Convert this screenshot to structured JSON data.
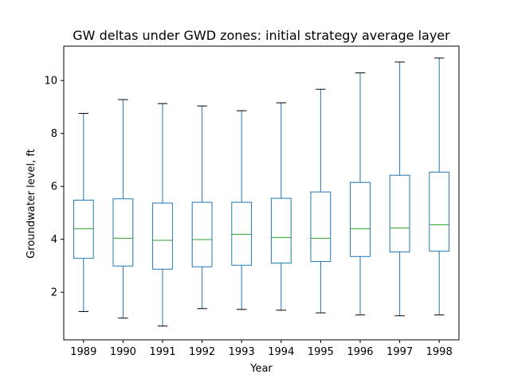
{
  "chart_data": {
    "type": "box",
    "title": "GW deltas under GWD zones: initial strategy average layer",
    "xlabel": "Year",
    "ylabel": "Groundwater level, ft",
    "categories": [
      "1989",
      "1990",
      "1991",
      "1992",
      "1993",
      "1994",
      "1995",
      "1996",
      "1997",
      "1998"
    ],
    "ylim": [
      0.2,
      11.3
    ],
    "yticks": [
      2,
      4,
      6,
      8,
      10
    ],
    "grid": false,
    "legend": "none",
    "boxes": [
      {
        "category": "1989",
        "whisker_low": 1.27,
        "q1": 3.28,
        "median": 4.4,
        "q3": 5.48,
        "whisker_high": 8.76
      },
      {
        "category": "1990",
        "whisker_low": 1.02,
        "q1": 2.99,
        "median": 4.04,
        "q3": 5.53,
        "whisker_high": 9.28
      },
      {
        "category": "1991",
        "whisker_low": 0.72,
        "q1": 2.87,
        "median": 3.96,
        "q3": 5.37,
        "whisker_high": 9.13
      },
      {
        "category": "1992",
        "whisker_low": 1.38,
        "q1": 2.96,
        "median": 3.99,
        "q3": 5.4,
        "whisker_high": 9.04
      },
      {
        "category": "1993",
        "whisker_low": 1.35,
        "q1": 3.02,
        "median": 4.19,
        "q3": 5.4,
        "whisker_high": 8.86
      },
      {
        "category": "1994",
        "whisker_low": 1.32,
        "q1": 3.1,
        "median": 4.07,
        "q3": 5.55,
        "whisker_high": 9.16
      },
      {
        "category": "1995",
        "whisker_low": 1.22,
        "q1": 3.16,
        "median": 4.04,
        "q3": 5.79,
        "whisker_high": 9.67
      },
      {
        "category": "1996",
        "whisker_low": 1.14,
        "q1": 3.35,
        "median": 4.4,
        "q3": 6.15,
        "whisker_high": 10.29
      },
      {
        "category": "1997",
        "whisker_low": 1.11,
        "q1": 3.52,
        "median": 4.43,
        "q3": 6.42,
        "whisker_high": 10.7
      },
      {
        "category": "1998",
        "whisker_low": 1.14,
        "q1": 3.55,
        "median": 4.55,
        "q3": 6.54,
        "whisker_high": 10.85
      }
    ],
    "colors": {
      "box": "#1f77b4",
      "median": "#2ca02c",
      "cap": "#000000",
      "axes": "#000000"
    }
  }
}
